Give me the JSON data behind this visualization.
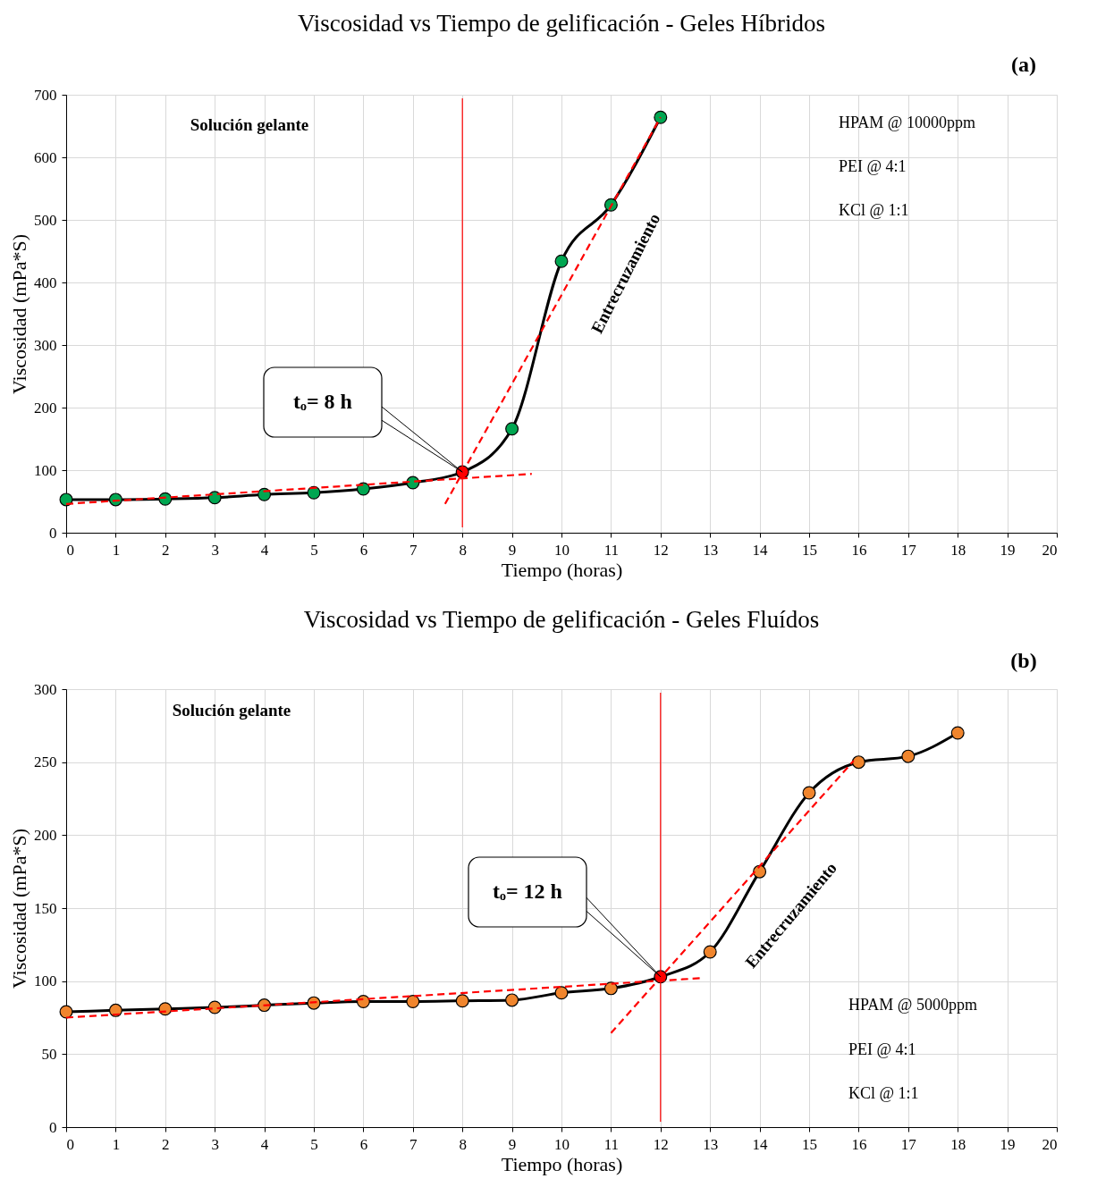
{
  "chart_data": [
    {
      "type": "line",
      "title": "Viscosidad vs Tiempo de gelificación - Geles Híbridos",
      "xlabel": "Tiempo (horas)",
      "ylabel": "Viscosidad (mPa*S)",
      "xlim": [
        0,
        20
      ],
      "xticks": [
        0,
        1,
        2,
        3,
        4,
        5,
        6,
        7,
        8,
        9,
        10,
        11,
        12,
        13,
        14,
        15,
        16,
        17,
        18,
        19,
        20
      ],
      "ylim": [
        0,
        700
      ],
      "yticks": [
        0,
        100,
        200,
        300,
        400,
        500,
        600,
        700
      ],
      "grid": true,
      "marker": "circle",
      "series": [
        {
          "color": "#00a651",
          "x": [
            0,
            1,
            2,
            3,
            4,
            5,
            6,
            7,
            8,
            9,
            10,
            11,
            12
          ],
          "values": [
            53,
            53,
            54,
            56,
            61,
            64,
            70,
            80,
            97,
            166,
            434,
            524,
            664
          ],
          "colors": [
            "#00a651",
            "#00a651",
            "#00a651",
            "#00a651",
            "#00a651",
            "#00a651",
            "#00a651",
            "#00a651",
            "#ff0000",
            "#00a651",
            "#00a651",
            "#00a651",
            "#00a651"
          ]
        },
        {
          "type": "line",
          "line_style": "dashed",
          "marker": "none",
          "color": "#ff0000",
          "x": [
            0,
            9.4
          ],
          "values": [
            46,
            94
          ]
        },
        {
          "type": "line",
          "line_style": "dashed",
          "marker": "none",
          "color": "#ff0000",
          "x": [
            7.65,
            12
          ],
          "values": [
            46,
            664
          ]
        }
      ],
      "ref_lines": [
        {
          "axis": "x",
          "value": 8,
          "color": "#ff0000"
        }
      ],
      "annotations": [
        "(a)",
        "Solución gelante",
        "HPAM @ 10000ppm",
        "PEI @ 4:1",
        "KCl @ 1:1",
        "Entrecruzamiento",
        {
          "text": "tₒ= 8 h",
          "x": 8,
          "y": 97
        }
      ]
    },
    {
      "type": "line",
      "title": "Viscosidad vs Tiempo de gelificación - Geles Fluídos",
      "xlabel": "Tiempo (horas)",
      "ylabel": "Viscosidad (mPa*S)",
      "xlim": [
        0,
        20
      ],
      "xticks": [
        0,
        1,
        2,
        3,
        4,
        5,
        6,
        7,
        8,
        9,
        10,
        11,
        12,
        13,
        14,
        15,
        16,
        17,
        18,
        19,
        20
      ],
      "ylim": [
        0,
        300
      ],
      "yticks": [
        0,
        50,
        100,
        150,
        200,
        250,
        300
      ],
      "grid": true,
      "marker": "circle",
      "series": [
        {
          "color": "#f0852d",
          "x": [
            0,
            1,
            2,
            3,
            4,
            5,
            6,
            7,
            8,
            9,
            10,
            11,
            12,
            13,
            14,
            15,
            16,
            17,
            18
          ],
          "values": [
            79,
            80,
            81,
            82,
            83.5,
            85,
            86,
            86,
            86.5,
            87,
            92,
            95,
            103,
            120,
            175,
            229,
            250,
            254,
            270
          ],
          "colors": [
            "#f0852d",
            "#f0852d",
            "#f0852d",
            "#f0852d",
            "#f0852d",
            "#f0852d",
            "#f0852d",
            "#f0852d",
            "#f0852d",
            "#f0852d",
            "#f0852d",
            "#f0852d",
            "#ff0000",
            "#f0852d",
            "#f0852d",
            "#f0852d",
            "#f0852d",
            "#f0852d",
            "#f0852d"
          ]
        },
        {
          "type": "line",
          "line_style": "dashed",
          "marker": "none",
          "color": "#ff0000",
          "x": [
            0,
            12.8
          ],
          "values": [
            75,
            102
          ]
        },
        {
          "type": "line",
          "line_style": "dashed",
          "marker": "none",
          "color": "#ff0000",
          "x": [
            11,
            15.9
          ],
          "values": [
            64.5,
            251
          ]
        }
      ],
      "ref_lines": [
        {
          "axis": "x",
          "value": 12,
          "color": "#ff0000"
        }
      ],
      "annotations": [
        "(b)",
        "Solución gelante",
        "HPAM @ 5000ppm",
        "PEI @ 4:1",
        "KCl @ 1:1",
        "Entrecruzamiento",
        {
          "text": "tₒ= 12 h",
          "x": 12,
          "y": 103
        }
      ]
    }
  ]
}
